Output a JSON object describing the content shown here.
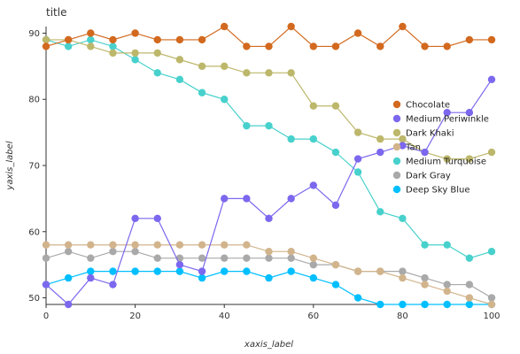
{
  "chart_data": {
    "type": "line",
    "title": "title",
    "xlabel": "xaxis_label",
    "ylabel": "yaxis_label",
    "xlim": [
      0,
      100
    ],
    "ylim": [
      49,
      91
    ],
    "xticks": [
      0,
      20,
      40,
      60,
      80,
      100
    ],
    "yticks": [
      50,
      60,
      70,
      80,
      90
    ],
    "grid": false,
    "legend_position": "center-right",
    "x": [
      0,
      5,
      10,
      15,
      20,
      25,
      30,
      35,
      40,
      45,
      50,
      55,
      60,
      65,
      70,
      75,
      80,
      85,
      90,
      95,
      100
    ],
    "series": [
      {
        "name": "Chocolate",
        "color": "#D2691E",
        "values": [
          88,
          89,
          90,
          89,
          90,
          89,
          89,
          89,
          91,
          88,
          88,
          91,
          88,
          88,
          90,
          88,
          91,
          88,
          88,
          89,
          89
        ]
      },
      {
        "name": "Medium Periwinkle",
        "color": "#7B68EE",
        "values": [
          52,
          49,
          53,
          52,
          62,
          62,
          55,
          54,
          65,
          65,
          62,
          65,
          67,
          64,
          71,
          72,
          73,
          72,
          78,
          78,
          83
        ]
      },
      {
        "name": "Dark Khaki",
        "color": "#BDB76B",
        "values": [
          89,
          89,
          88,
          87,
          87,
          87,
          86,
          85,
          85,
          84,
          84,
          84,
          79,
          79,
          75,
          74,
          74,
          72,
          71,
          71,
          72
        ]
      },
      {
        "name": "Tan",
        "color": "#D2B48C",
        "values": [
          58,
          58,
          58,
          58,
          58,
          58,
          58,
          58,
          58,
          58,
          57,
          57,
          56,
          55,
          54,
          54,
          53,
          52,
          51,
          50,
          49
        ]
      },
      {
        "name": "Medium Turquoise",
        "color": "#48D1CC",
        "values": [
          89,
          88,
          89,
          88,
          86,
          84,
          83,
          81,
          80,
          76,
          76,
          74,
          74,
          72,
          69,
          63,
          62,
          58,
          58,
          56,
          57
        ]
      },
      {
        "name": "Dark Gray",
        "color": "#A9A9A9",
        "values": [
          56,
          57,
          56,
          57,
          57,
          56,
          56,
          56,
          56,
          56,
          56,
          56,
          55,
          55,
          54,
          54,
          54,
          53,
          52,
          52,
          50
        ]
      },
      {
        "name": "Deep Sky Blue",
        "color": "#00BFFF",
        "values": [
          52,
          53,
          54,
          54,
          54,
          54,
          54,
          53,
          54,
          54,
          53,
          54,
          53,
          52,
          50,
          49,
          49,
          49,
          49,
          49,
          49
        ]
      }
    ]
  }
}
